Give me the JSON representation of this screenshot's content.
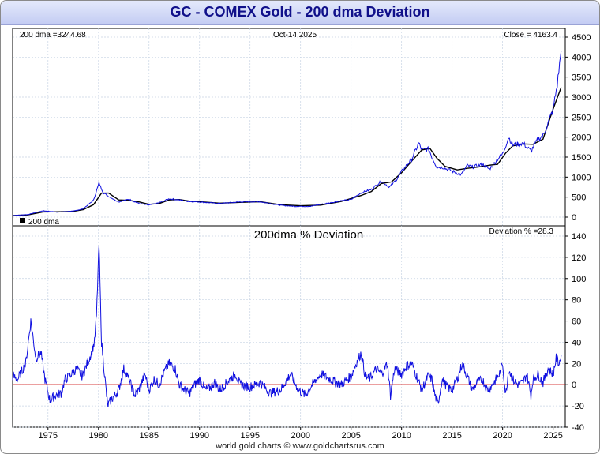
{
  "title": "GC - COMEX Gold - 200 dma Deviation",
  "footer": "world gold charts © www.goldchartsrus.com",
  "colors": {
    "price": "#1010e0",
    "dma": "#000000",
    "zero_line": "#cc0000",
    "title_text": "#10108a",
    "grid": "#c8d4e4"
  },
  "chart_data": [
    {
      "type": "line",
      "readouts": {
        "dma": "200 dma =3244.68",
        "date": "Oct-14  2025",
        "close": "Close = 4163.4"
      },
      "legend": "200 dma",
      "legend_placement": "bottom-left",
      "ylim": [
        -100,
        4620
      ],
      "yticks": [
        0,
        500,
        1000,
        1500,
        2000,
        2500,
        3000,
        3500,
        4000,
        4500
      ],
      "xlim": [
        1971.5,
        2026.2
      ],
      "xticks": [
        1975,
        1980,
        1985,
        1990,
        1995,
        2000,
        2005,
        2010,
        2015,
        2020,
        2025
      ],
      "grid": true,
      "series": [
        {
          "role": "price",
          "x": [
            1971.5,
            1973,
            1974.5,
            1976,
            1977.5,
            1978.5,
            1979.5,
            1980.05,
            1980.5,
            1981,
            1982,
            1983,
            1984,
            1985,
            1986,
            1987,
            1988,
            1989,
            1990,
            1992,
            1994,
            1996,
            1998,
            1999.5,
            2001,
            2002,
            2003,
            2004,
            2005,
            2006,
            2007,
            2008,
            2008.8,
            2009.5,
            2010,
            2011,
            2011.7,
            2012,
            2012.7,
            2013,
            2013.5,
            2014,
            2015,
            2015.9,
            2016.5,
            2017,
            2018,
            2018.7,
            2019.5,
            2020,
            2020.6,
            2021,
            2022,
            2022.8,
            2023.5,
            2024,
            2024.5,
            2025,
            2025.4,
            2025.79
          ],
          "y": [
            40,
            65,
            160,
            125,
            150,
            210,
            420,
            850,
            600,
            520,
            380,
            450,
            340,
            300,
            360,
            460,
            430,
            390,
            380,
            340,
            380,
            385,
            295,
            270,
            270,
            320,
            360,
            410,
            440,
            610,
            690,
            900,
            750,
            940,
            1140,
            1450,
            1850,
            1680,
            1700,
            1500,
            1250,
            1250,
            1150,
            1060,
            1290,
            1250,
            1320,
            1200,
            1450,
            1580,
            2000,
            1800,
            1850,
            1650,
            1950,
            2030,
            2350,
            2700,
            3300,
            4163
          ]
        },
        {
          "role": "dma",
          "x": [
            1971.5,
            1973,
            1974.5,
            1976,
            1977.5,
            1978.5,
            1979.5,
            1980.3,
            1981,
            1982,
            1983,
            1984,
            1985,
            1986,
            1987,
            1988,
            1989,
            1990,
            1992,
            1994,
            1996,
            1998,
            2000,
            2002,
            2004,
            2006,
            2007,
            2008,
            2009,
            2010,
            2011,
            2012,
            2012.8,
            2013.5,
            2014.3,
            2015.5,
            2016.5,
            2017.5,
            2018.8,
            2019.5,
            2020.3,
            2021,
            2022,
            2023,
            2024,
            2025,
            2025.79
          ],
          "y": [
            40,
            55,
            130,
            135,
            145,
            190,
            310,
            600,
            600,
            430,
            420,
            380,
            320,
            340,
            430,
            440,
            400,
            385,
            350,
            370,
            385,
            310,
            285,
            300,
            390,
            540,
            640,
            840,
            880,
            1110,
            1400,
            1680,
            1720,
            1470,
            1270,
            1180,
            1220,
            1250,
            1300,
            1320,
            1600,
            1780,
            1830,
            1820,
            1950,
            2700,
            3245
          ]
        }
      ]
    },
    {
      "type": "line",
      "title": "200dma  %  Deviation",
      "readout": "Deviation % =28.3",
      "ylim": [
        -40,
        144
      ],
      "yticks": [
        -40,
        -20,
        0,
        20,
        40,
        60,
        80,
        100,
        120,
        140
      ],
      "xlim": [
        1971.5,
        2026.2
      ],
      "xticks": [
        1975,
        1980,
        1985,
        1990,
        1995,
        2000,
        2005,
        2010,
        2015,
        2020,
        2025
      ],
      "grid": true,
      "zero_line": true,
      "series": [
        {
          "role": "deviation",
          "x": [
            1971.5,
            1972,
            1972.8,
            1973.3,
            1973.8,
            1974.3,
            1974.7,
            1975.2,
            1975.7,
            1976.3,
            1976.7,
            1977.3,
            1977.8,
            1978.4,
            1978.8,
            1979.3,
            1979.6,
            1979.8,
            1980.05,
            1980.3,
            1980.6,
            1980.9,
            1981.2,
            1981.6,
            1982,
            1982.5,
            1983,
            1983.6,
            1984,
            1984.6,
            1985,
            1985.5,
            1986,
            1986.5,
            1987,
            1987.6,
            1988,
            1988.5,
            1989,
            1989.5,
            1990,
            1990.6,
            1991,
            1991.5,
            1992,
            1992.5,
            1993,
            1993.6,
            1994,
            1995,
            1996,
            1997,
            1998,
            1999,
            1999.8,
            2000.5,
            2001,
            2002,
            2003,
            2004,
            2005,
            2005.5,
            2006,
            2006.4,
            2006.8,
            2007.5,
            2008,
            2008.6,
            2008.9,
            2009.3,
            2010,
            2010.5,
            2011,
            2011.6,
            2012,
            2012.6,
            2013,
            2013.3,
            2013.6,
            2014,
            2014.5,
            2015,
            2015.5,
            2016,
            2016.5,
            2017,
            2017.5,
            2018,
            2018.5,
            2019,
            2019.7,
            2020,
            2020.3,
            2020.6,
            2021,
            2021.5,
            2022,
            2022.4,
            2022.8,
            2023,
            2023.5,
            2024,
            2024.5,
            2025,
            2025.3,
            2025.6,
            2025.79
          ],
          "y": [
            8,
            5,
            20,
            60,
            25,
            30,
            5,
            -15,
            -10,
            -8,
            5,
            10,
            15,
            8,
            18,
            30,
            40,
            65,
            132,
            40,
            10,
            -20,
            -15,
            -10,
            -5,
            15,
            5,
            -10,
            -5,
            10,
            -5,
            5,
            0,
            12,
            20,
            15,
            0,
            -5,
            -8,
            0,
            5,
            -5,
            -3,
            2,
            -5,
            0,
            5,
            10,
            0,
            -2,
            2,
            -8,
            -5,
            10,
            -5,
            -10,
            -2,
            10,
            5,
            0,
            8,
            20,
            30,
            8,
            5,
            15,
            10,
            20,
            -10,
            15,
            10,
            18,
            20,
            5,
            -5,
            8,
            5,
            -10,
            -18,
            5,
            -2,
            -5,
            5,
            20,
            8,
            -5,
            2,
            5,
            -5,
            0,
            10,
            20,
            -10,
            15,
            5,
            0,
            2,
            10,
            -10,
            5,
            10,
            2,
            15,
            10,
            25,
            20,
            28
          ]
        }
      ]
    }
  ]
}
